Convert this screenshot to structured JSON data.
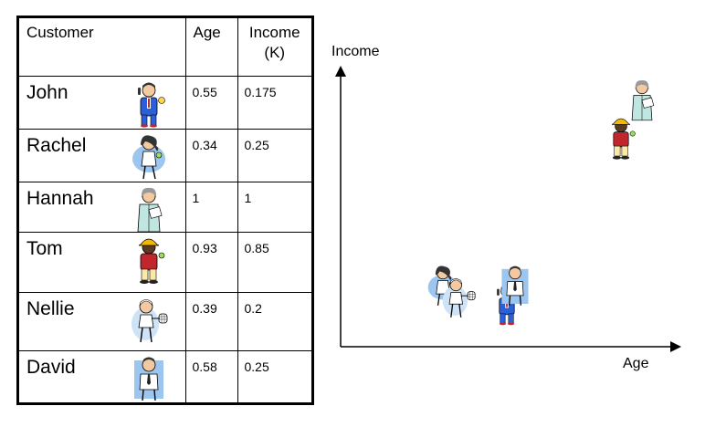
{
  "table": {
    "headers": {
      "customer": "Customer",
      "age": "Age",
      "income_line1": "Income",
      "income_line2": "(K)"
    },
    "rows": [
      {
        "name": "John",
        "age": "0.55",
        "income": "0.175",
        "icon": "businessman-icon"
      },
      {
        "name": "Rachel",
        "age": "0.34",
        "income": "0.25",
        "icon": "woman-figure-icon"
      },
      {
        "name": "Hannah",
        "age": "1",
        "income": "1",
        "icon": "elderly-woman-icon"
      },
      {
        "name": "Tom",
        "age": "0.93",
        "income": "0.85",
        "icon": "construction-worker-icon"
      },
      {
        "name": "Nellie",
        "age": "0.39",
        "income": "0.2",
        "icon": "tennis-player-icon"
      },
      {
        "name": "David",
        "age": "0.58",
        "income": "0.25",
        "icon": "man-tie-icon"
      }
    ]
  },
  "chart_data": {
    "type": "scatter",
    "xlabel": "Age",
    "ylabel": "Income",
    "points": [
      {
        "name": "John",
        "x": 0.55,
        "y": 0.175
      },
      {
        "name": "Rachel",
        "x": 0.34,
        "y": 0.25
      },
      {
        "name": "Hannah",
        "x": 1,
        "y": 1
      },
      {
        "name": "Tom",
        "x": 0.93,
        "y": 0.85
      },
      {
        "name": "Nellie",
        "x": 0.39,
        "y": 0.2
      },
      {
        "name": "David",
        "x": 0.58,
        "y": 0.25
      }
    ],
    "grid": false,
    "legend": "none"
  },
  "colors": {
    "suit_blue": "#2b5fd9",
    "skin": "#f2c9a0",
    "hair_dark": "#333333",
    "helmet_yellow": "#f5b800",
    "shirt_red": "#c0272d",
    "teal_coat": "#bfe6e0",
    "backdrop_blue": "#9cc6f0"
  }
}
